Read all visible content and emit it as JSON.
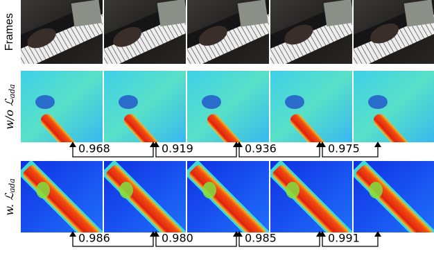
{
  "rows": [
    {
      "label": "Frames"
    },
    {
      "label": "w/o",
      "symbol": "ℒ",
      "subscript": "ada",
      "scores": [
        "0.968",
        "0.919",
        "0.936",
        "0.975"
      ]
    },
    {
      "label": "w.",
      "symbol": "ℒ",
      "subscript": "ada",
      "scores": [
        "0.986",
        "0.980",
        "0.985",
        "0.991"
      ]
    }
  ]
}
